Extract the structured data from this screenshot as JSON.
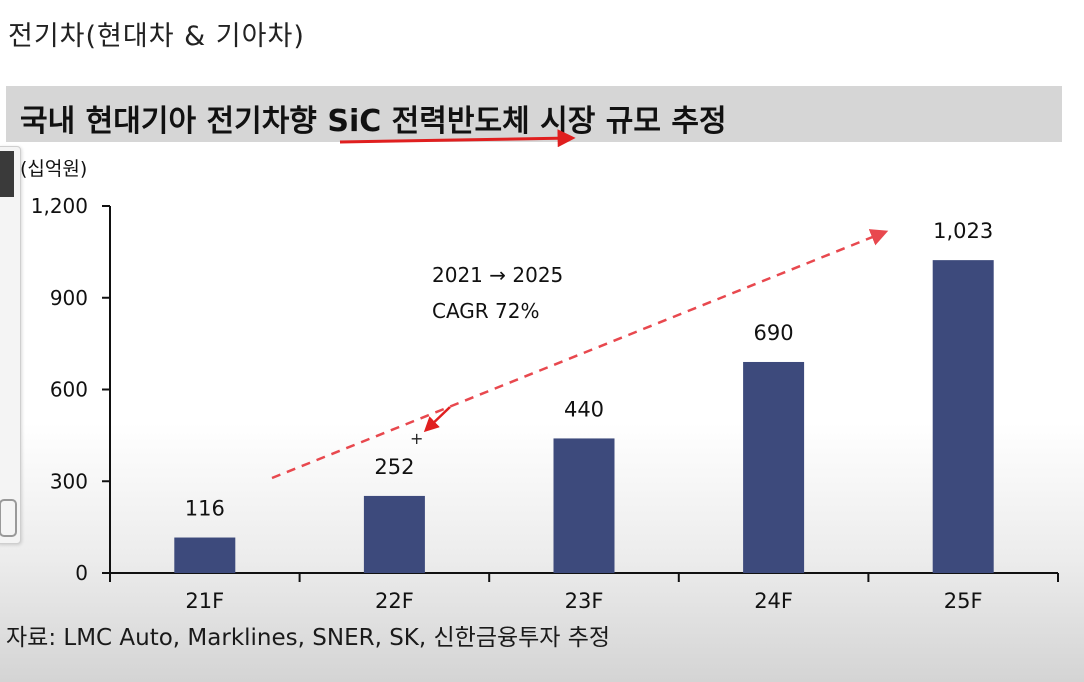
{
  "page": {
    "title": "전기차(현대차 & 기아차)",
    "source": "자료: LMC Auto, Marklines, SNER, SK, 신한금융투자 추정"
  },
  "chart_data": {
    "type": "bar",
    "title": "국내 현대기아 전기차향 SiC 전력반도체 시장 규모 추정",
    "unit_label": "(십억원)",
    "categories": [
      "21F",
      "22F",
      "23F",
      "24F",
      "25F"
    ],
    "values": [
      116,
      252,
      440,
      690,
      1023
    ],
    "value_labels": [
      "116",
      "252",
      "440",
      "690",
      "1,023"
    ],
    "yticks": [
      0,
      300,
      600,
      900,
      1200
    ],
    "ytick_labels": [
      "0",
      "300",
      "600",
      "900",
      "1,200"
    ],
    "ylim": [
      0,
      1200
    ],
    "grid": false,
    "annotation": {
      "line1": "2021 → 2025",
      "line2": "CAGR 72%"
    },
    "colors": {
      "bar": "#3d4a7c",
      "trend_arrow": "#e8484e",
      "underline_arrow": "#e01f1f",
      "title_band": "#d6d6d6"
    }
  }
}
